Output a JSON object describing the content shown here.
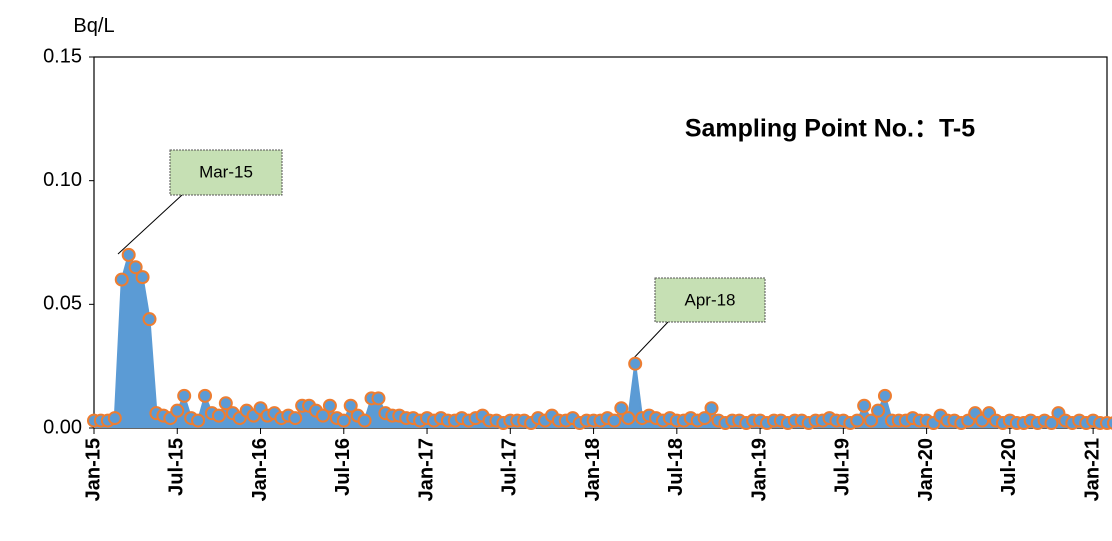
{
  "chart_data": {
    "type": "line",
    "unit_label": "Bq/L",
    "title": "Sampling Point No.：T-5",
    "annotations": [
      "Mar-15",
      "Apr-18"
    ],
    "x": [
      "2015-01",
      "2015-01",
      "2015-02",
      "2015-02",
      "2015-03",
      "2015-03",
      "2015-04",
      "2015-04",
      "2015-05",
      "2015-05",
      "2015-06",
      "2015-06",
      "2015-07",
      "2015-07",
      "2015-08",
      "2015-08",
      "2015-09",
      "2015-09",
      "2015-10",
      "2015-10",
      "2015-11",
      "2015-11",
      "2015-12",
      "2015-12",
      "2016-01",
      "2016-01",
      "2016-02",
      "2016-02",
      "2016-03",
      "2016-03",
      "2016-04",
      "2016-04",
      "2016-05",
      "2016-05",
      "2016-06",
      "2016-06",
      "2016-07",
      "2016-07",
      "2016-08",
      "2016-08",
      "2016-09",
      "2016-09",
      "2016-10",
      "2016-10",
      "2016-11",
      "2016-11",
      "2016-12",
      "2016-12",
      "2017-01",
      "2017-01",
      "2017-02",
      "2017-02",
      "2017-03",
      "2017-03",
      "2017-04",
      "2017-04",
      "2017-05",
      "2017-05",
      "2017-06",
      "2017-06",
      "2017-07",
      "2017-07",
      "2017-08",
      "2017-08",
      "2017-09",
      "2017-09",
      "2017-10",
      "2017-10",
      "2017-11",
      "2017-11",
      "2017-12",
      "2017-12",
      "2018-01",
      "2018-01",
      "2018-02",
      "2018-02",
      "2018-03",
      "2018-03",
      "2018-04",
      "2018-04",
      "2018-05",
      "2018-05",
      "2018-06",
      "2018-06",
      "2018-07",
      "2018-07",
      "2018-08",
      "2018-08",
      "2018-09",
      "2018-09",
      "2018-10",
      "2018-10",
      "2018-11",
      "2018-11",
      "2018-12",
      "2018-12",
      "2019-01",
      "2019-01",
      "2019-02",
      "2019-02",
      "2019-03",
      "2019-03",
      "2019-04",
      "2019-04",
      "2019-05",
      "2019-05",
      "2019-06",
      "2019-06",
      "2019-07",
      "2019-07",
      "2019-08",
      "2019-08",
      "2019-09",
      "2019-09",
      "2019-10",
      "2019-10",
      "2019-11",
      "2019-11",
      "2019-12",
      "2019-12",
      "2020-01",
      "2020-01",
      "2020-02",
      "2020-02",
      "2020-03",
      "2020-03",
      "2020-04",
      "2020-04",
      "2020-05",
      "2020-05",
      "2020-06",
      "2020-06",
      "2020-07",
      "2020-07",
      "2020-08",
      "2020-08",
      "2020-09",
      "2020-09",
      "2020-10",
      "2020-10",
      "2020-11",
      "2020-11",
      "2020-12",
      "2020-12",
      "2021-01",
      "2021-01",
      "2021-02",
      "2021-02"
    ],
    "series": [
      {
        "name": "T-5",
        "color": "#5b9bd5",
        "marker_edge": "#ed7d31",
        "values": [
          0.003,
          0.003,
          0.003,
          0.004,
          0.06,
          0.07,
          0.065,
          0.061,
          0.044,
          0.006,
          0.005,
          0.004,
          0.007,
          0.013,
          0.004,
          0.003,
          0.013,
          0.006,
          0.005,
          0.01,
          0.006,
          0.004,
          0.007,
          0.005,
          0.008,
          0.005,
          0.006,
          0.004,
          0.005,
          0.004,
          0.009,
          0.009,
          0.007,
          0.005,
          0.009,
          0.004,
          0.003,
          0.009,
          0.005,
          0.003,
          0.012,
          0.012,
          0.006,
          0.005,
          0.005,
          0.004,
          0.004,
          0.003,
          0.004,
          0.003,
          0.004,
          0.003,
          0.003,
          0.004,
          0.003,
          0.004,
          0.005,
          0.003,
          0.003,
          0.002,
          0.003,
          0.003,
          0.003,
          0.002,
          0.004,
          0.003,
          0.005,
          0.003,
          0.003,
          0.004,
          0.002,
          0.003,
          0.003,
          0.003,
          0.004,
          0.003,
          0.008,
          0.004,
          0.026,
          0.004,
          0.005,
          0.004,
          0.003,
          0.004,
          0.003,
          0.003,
          0.004,
          0.003,
          0.004,
          0.008,
          0.003,
          0.002,
          0.003,
          0.003,
          0.002,
          0.003,
          0.003,
          0.002,
          0.003,
          0.003,
          0.002,
          0.003,
          0.003,
          0.002,
          0.003,
          0.003,
          0.004,
          0.003,
          0.003,
          0.002,
          0.003,
          0.009,
          0.003,
          0.007,
          0.013,
          0.003,
          0.003,
          0.003,
          0.004,
          0.003,
          0.003,
          0.002,
          0.005,
          0.003,
          0.003,
          0.002,
          0.003,
          0.006,
          0.003,
          0.006,
          0.003,
          0.002,
          0.003,
          0.002,
          0.002,
          0.003,
          0.002,
          0.003,
          0.002,
          0.006,
          0.003,
          0.002,
          0.003,
          0.002,
          0.003,
          0.002,
          0.002,
          0.002
        ]
      }
    ],
    "xlim": [
      "2015-01",
      "2021-02"
    ],
    "xticks": [
      {
        "value": "2015-01",
        "label": "Jan-15"
      },
      {
        "value": "2015-07",
        "label": "Jul-15"
      },
      {
        "value": "2016-01",
        "label": "Jan-16"
      },
      {
        "value": "2016-07",
        "label": "Jul-16"
      },
      {
        "value": "2017-01",
        "label": "Jan-17"
      },
      {
        "value": "2017-07",
        "label": "Jul-17"
      },
      {
        "value": "2018-01",
        "label": "Jan-18"
      },
      {
        "value": "2018-07",
        "label": "Jul-18"
      },
      {
        "value": "2019-01",
        "label": "Jan-19"
      },
      {
        "value": "2019-07",
        "label": "Jul-19"
      },
      {
        "value": "2020-01",
        "label": "Jan-20"
      },
      {
        "value": "2020-07",
        "label": "Jul-20"
      },
      {
        "value": "2021-01",
        "label": "Jan-21"
      }
    ],
    "ylim": [
      0,
      0.15
    ],
    "yticks": [
      {
        "value": 0,
        "label": "0.00"
      },
      {
        "value": 0.05,
        "label": "0.05"
      },
      {
        "value": 0.1,
        "label": "0.10"
      },
      {
        "value": 0.15,
        "label": "0.15"
      }
    ]
  }
}
